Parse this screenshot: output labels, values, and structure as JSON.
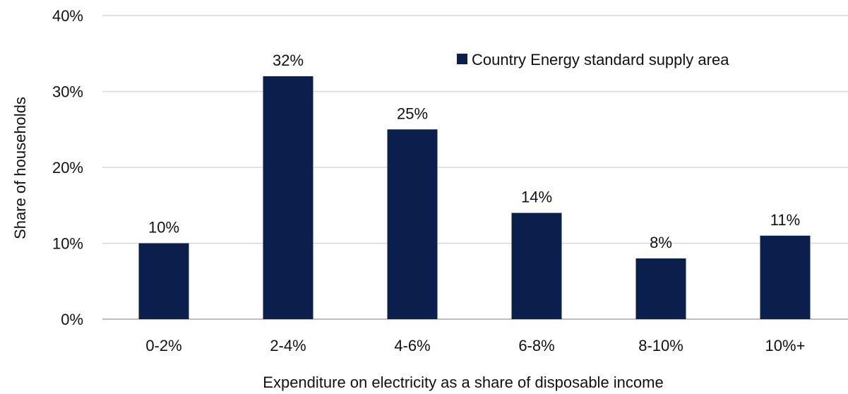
{
  "chart_data": {
    "type": "bar",
    "categories": [
      "0-2%",
      "2-4%",
      "4-6%",
      "6-8%",
      "8-10%",
      "10%+"
    ],
    "series": [
      {
        "name": "Country Energy standard supply area",
        "values": [
          10,
          32,
          25,
          14,
          8,
          11
        ],
        "labels": [
          "10%",
          "32%",
          "25%",
          "14%",
          "8%",
          "11%"
        ],
        "color": "#0b1f4d"
      }
    ],
    "xlabel": "Expenditure on electricity as a share of disposable income",
    "ylabel": "Share of households",
    "ylim": [
      0,
      40
    ],
    "yticks": [
      0,
      10,
      20,
      30,
      40
    ],
    "ytick_labels": [
      "0%",
      "10%",
      "20%",
      "30%",
      "40%"
    ],
    "grid": true,
    "legend_position": "top-right"
  }
}
